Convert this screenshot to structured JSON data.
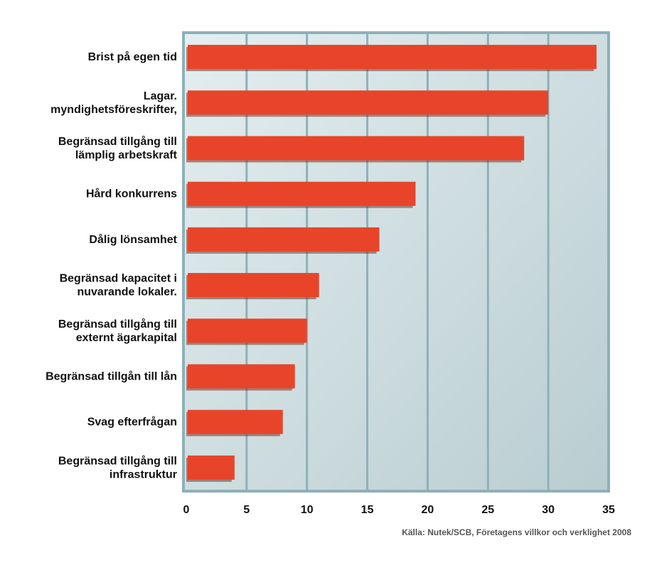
{
  "chart_data": {
    "type": "bar",
    "orientation": "horizontal",
    "categories": [
      [
        "Brist på egen tid"
      ],
      [
        "Lagar.",
        "myndighetsföreskrifter,"
      ],
      [
        "Begränsad tillgång till",
        "lämplig arbetskraft"
      ],
      [
        "Hård konkurrens"
      ],
      [
        "Dålig lönsamhet"
      ],
      [
        "Begränsad kapacitet i",
        "nuvarande lokaler."
      ],
      [
        "Begränsad tillgång till",
        "externt ägarkapital"
      ],
      [
        "Begränsad tillgån till lån"
      ],
      [
        "Svag efterfrågan"
      ],
      [
        "Begränsad tillgång till",
        "infrastruktur"
      ]
    ],
    "values": [
      34,
      30,
      28,
      19,
      16,
      11,
      10,
      9,
      8,
      4
    ],
    "xlim": [
      0,
      35
    ],
    "xticks": [
      0,
      5,
      10,
      15,
      20,
      25,
      30,
      35
    ],
    "grid": true,
    "bar_color": "#e8442a",
    "plot_background": "#c9dade",
    "frame_color": "#8fb0b8",
    "source": "Källa: Nutek/SCB, Företagens villkor och verklighet 2008"
  }
}
